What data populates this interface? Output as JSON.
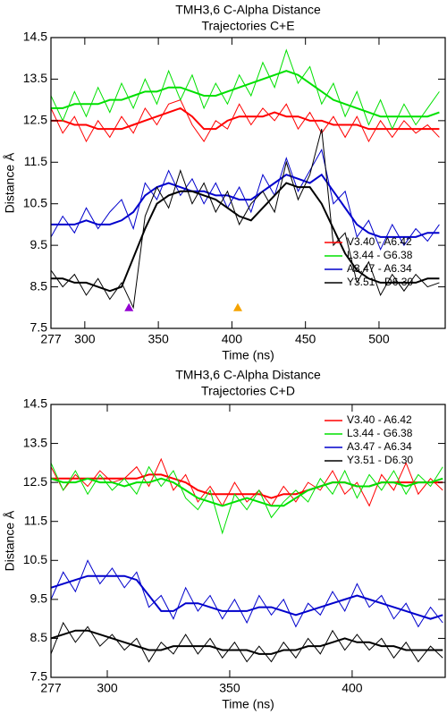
{
  "chart_data": [
    {
      "type": "line",
      "title": "TMH3,6 C-Alpha Distance",
      "subtitle": "Trajectories C+E",
      "x_label": "Time (ns)",
      "y_label": "Distance Å",
      "x": [
        277,
        285,
        293,
        301,
        309,
        317,
        325,
        333,
        341,
        349,
        357,
        365,
        373,
        381,
        389,
        397,
        405,
        413,
        421,
        429,
        437,
        445,
        453,
        461,
        469,
        477,
        485,
        493,
        501,
        509,
        517,
        525,
        533,
        541
      ],
      "xlim": [
        277,
        545
      ],
      "xticks": [
        277,
        300,
        350,
        400,
        450,
        500
      ],
      "ylim": [
        7.5,
        14.5
      ],
      "yticks": [
        7.5,
        8.5,
        9.5,
        10.5,
        11.5,
        12.5,
        13.5,
        14.5
      ],
      "legend": "lower right",
      "series": [
        {
          "name": "V3.40 - A6.42",
          "color": "#ff0000",
          "values": [
            12.8,
            12.2,
            12.6,
            12.0,
            12.5,
            12.1,
            12.6,
            12.2,
            12.8,
            12.4,
            12.9,
            13.0,
            12.4,
            12.0,
            12.5,
            12.3,
            12.9,
            12.4,
            12.8,
            12.5,
            12.9,
            12.3,
            12.7,
            12.2,
            12.6,
            12.1,
            12.6,
            12.0,
            12.5,
            12.1,
            12.5,
            12.2,
            12.4,
            12.1
          ],
          "smooth": [
            12.5,
            12.5,
            12.4,
            12.4,
            12.3,
            12.3,
            12.3,
            12.4,
            12.5,
            12.6,
            12.7,
            12.8,
            12.6,
            12.3,
            12.3,
            12.5,
            12.6,
            12.6,
            12.6,
            12.7,
            12.6,
            12.6,
            12.5,
            12.5,
            12.4,
            12.4,
            12.4,
            12.3,
            12.3,
            12.3,
            12.3,
            12.3,
            12.3,
            12.3
          ]
        },
        {
          "name": "L3.44 - G6.38",
          "color": "#00e000",
          "values": [
            13.1,
            12.5,
            13.2,
            12.6,
            13.3,
            12.7,
            13.4,
            12.8,
            13.5,
            12.9,
            13.7,
            13.0,
            13.6,
            12.8,
            13.4,
            12.9,
            13.6,
            13.1,
            13.9,
            13.3,
            14.2,
            13.4,
            13.8,
            12.9,
            13.4,
            12.6,
            13.2,
            12.4,
            13.0,
            12.3,
            12.9,
            12.4,
            12.8,
            13.2
          ],
          "smooth": [
            12.8,
            12.8,
            12.9,
            12.9,
            12.9,
            13.0,
            13.0,
            13.1,
            13.2,
            13.2,
            13.3,
            13.3,
            13.2,
            13.1,
            13.1,
            13.2,
            13.3,
            13.4,
            13.5,
            13.6,
            13.7,
            13.6,
            13.4,
            13.2,
            13.0,
            12.9,
            12.8,
            12.7,
            12.6,
            12.6,
            12.6,
            12.6,
            12.6,
            12.7
          ]
        },
        {
          "name": "A3.47 - A6.34",
          "color": "#0000cc",
          "values": [
            9.7,
            10.2,
            9.8,
            10.4,
            9.9,
            10.3,
            10.6,
            9.9,
            11.0,
            10.6,
            11.3,
            10.7,
            11.1,
            10.5,
            11.0,
            10.4,
            10.9,
            10.3,
            11.2,
            10.7,
            11.6,
            10.8,
            11.3,
            11.8,
            10.5,
            10.8,
            9.7,
            10.1,
            9.4,
            10.0,
            9.5,
            9.9,
            9.6,
            10.0
          ],
          "smooth": [
            10.0,
            10.0,
            10.0,
            10.1,
            10.0,
            10.0,
            10.1,
            10.3,
            10.7,
            10.9,
            11.0,
            10.9,
            10.8,
            10.8,
            10.7,
            10.7,
            10.6,
            10.6,
            10.8,
            11.0,
            11.2,
            11.1,
            11.0,
            11.2,
            10.8,
            10.4,
            10.0,
            9.8,
            9.7,
            9.7,
            9.7,
            9.7,
            9.8,
            9.8
          ]
        },
        {
          "name": "Y3.51 - D6.30",
          "color": "#000000",
          "values": [
            8.9,
            8.5,
            8.8,
            8.3,
            8.7,
            8.2,
            8.6,
            8.0,
            10.2,
            10.9,
            10.4,
            11.3,
            10.5,
            11.0,
            10.3,
            10.8,
            10.0,
            10.5,
            10.8,
            10.3,
            11.5,
            10.6,
            11.2,
            12.3,
            9.5,
            9.8,
            8.6,
            9.1,
            8.3,
            8.8,
            8.4,
            8.8,
            8.5,
            8.6
          ],
          "smooth": [
            8.7,
            8.7,
            8.6,
            8.6,
            8.5,
            8.4,
            8.5,
            9.2,
            9.9,
            10.5,
            10.7,
            10.8,
            10.8,
            10.7,
            10.6,
            10.4,
            10.2,
            10.1,
            10.4,
            10.7,
            11.0,
            10.9,
            10.9,
            10.5,
            9.9,
            9.3,
            8.9,
            8.7,
            8.6,
            8.6,
            8.6,
            8.6,
            8.7,
            8.7
          ]
        }
      ],
      "markers": [
        {
          "x": 330,
          "y": 8.0,
          "color": "#9400d3"
        },
        {
          "x": 404,
          "y": 8.0,
          "color": "#f5a300"
        }
      ]
    },
    {
      "type": "line",
      "title": "TMH3,6 C-Alpha Distance",
      "subtitle": "Trajectories C+D",
      "x_label": "Time (ns)",
      "y_label": "Distance Å",
      "x": [
        277,
        282,
        287,
        292,
        297,
        302,
        307,
        312,
        317,
        322,
        327,
        332,
        337,
        342,
        347,
        352,
        357,
        362,
        367,
        372,
        377,
        382,
        387,
        392,
        397,
        402,
        407,
        412,
        417,
        422,
        427,
        432,
        437
      ],
      "xlim": [
        277,
        438
      ],
      "xticks": [
        277,
        300,
        350,
        400
      ],
      "ylim": [
        7.5,
        14.5
      ],
      "yticks": [
        7.5,
        8.5,
        9.5,
        10.5,
        11.5,
        12.5,
        13.5,
        14.5
      ],
      "legend": "upper right",
      "series": [
        {
          "name": "V3.40 - A6.42",
          "color": "#ff0000",
          "values": [
            12.9,
            12.3,
            12.7,
            12.4,
            12.8,
            12.5,
            12.6,
            12.9,
            12.4,
            13.1,
            12.3,
            12.7,
            12.0,
            12.4,
            11.9,
            12.5,
            12.0,
            12.3,
            11.9,
            12.4,
            12.0,
            12.5,
            12.3,
            12.8,
            12.2,
            12.5,
            11.9,
            12.7,
            12.3,
            13.0,
            12.2,
            12.6,
            12.3
          ],
          "smooth": [
            12.6,
            12.6,
            12.6,
            12.6,
            12.6,
            12.6,
            12.6,
            12.6,
            12.7,
            12.7,
            12.6,
            12.5,
            12.3,
            12.2,
            12.2,
            12.2,
            12.2,
            12.2,
            12.1,
            12.2,
            12.2,
            12.3,
            12.4,
            12.5,
            12.5,
            12.4,
            12.4,
            12.5,
            12.5,
            12.5,
            12.5,
            12.5,
            12.5
          ]
        },
        {
          "name": "L3.44 - G6.38",
          "color": "#00e000",
          "values": [
            13.0,
            12.3,
            12.8,
            12.2,
            12.7,
            12.3,
            12.6,
            12.2,
            12.9,
            12.4,
            12.8,
            12.1,
            11.8,
            12.3,
            11.2,
            12.2,
            11.8,
            12.3,
            11.6,
            12.0,
            12.3,
            12.0,
            12.6,
            12.2,
            12.8,
            12.1,
            12.7,
            12.3,
            12.8,
            12.2,
            12.7,
            12.4,
            12.9
          ],
          "smooth": [
            12.6,
            12.5,
            12.5,
            12.6,
            12.5,
            12.5,
            12.4,
            12.5,
            12.5,
            12.6,
            12.5,
            12.3,
            12.1,
            12.0,
            11.9,
            12.0,
            12.1,
            12.0,
            11.9,
            11.9,
            12.1,
            12.3,
            12.4,
            12.5,
            12.5,
            12.4,
            12.4,
            12.5,
            12.5,
            12.4,
            12.5,
            12.5,
            12.6
          ]
        },
        {
          "name": "A3.47 - A6.34",
          "color": "#0000cc",
          "values": [
            9.5,
            10.2,
            9.7,
            10.5,
            9.9,
            10.3,
            9.8,
            10.2,
            9.3,
            9.6,
            9.0,
            9.8,
            9.2,
            9.6,
            9.0,
            9.5,
            8.9,
            9.6,
            9.1,
            9.5,
            8.8,
            9.4,
            9.1,
            9.7,
            9.2,
            9.9,
            9.3,
            9.6,
            9.0,
            9.4,
            8.8,
            9.3,
            8.9
          ],
          "smooth": [
            9.8,
            9.9,
            10.0,
            10.1,
            10.1,
            10.1,
            10.1,
            10.0,
            9.6,
            9.2,
            9.2,
            9.4,
            9.4,
            9.3,
            9.2,
            9.2,
            9.2,
            9.3,
            9.3,
            9.2,
            9.1,
            9.2,
            9.3,
            9.4,
            9.5,
            9.6,
            9.5,
            9.4,
            9.3,
            9.2,
            9.1,
            9.0,
            9.1
          ]
        },
        {
          "name": "Y3.51 - D6.30",
          "color": "#000000",
          "values": [
            8.1,
            8.9,
            8.4,
            8.8,
            8.3,
            8.6,
            8.2,
            8.5,
            7.9,
            8.4,
            8.1,
            8.6,
            8.1,
            8.5,
            8.0,
            8.4,
            7.9,
            8.3,
            7.9,
            8.4,
            8.0,
            8.5,
            8.1,
            8.7,
            8.2,
            8.6,
            8.2,
            8.5,
            8.0,
            8.4,
            7.9,
            8.3,
            8.0
          ],
          "smooth": [
            8.5,
            8.6,
            8.7,
            8.7,
            8.6,
            8.5,
            8.4,
            8.3,
            8.2,
            8.2,
            8.3,
            8.3,
            8.3,
            8.3,
            8.2,
            8.2,
            8.2,
            8.1,
            8.1,
            8.2,
            8.2,
            8.3,
            8.3,
            8.4,
            8.5,
            8.4,
            8.4,
            8.3,
            8.3,
            8.2,
            8.2,
            8.2,
            8.2
          ]
        }
      ]
    }
  ]
}
